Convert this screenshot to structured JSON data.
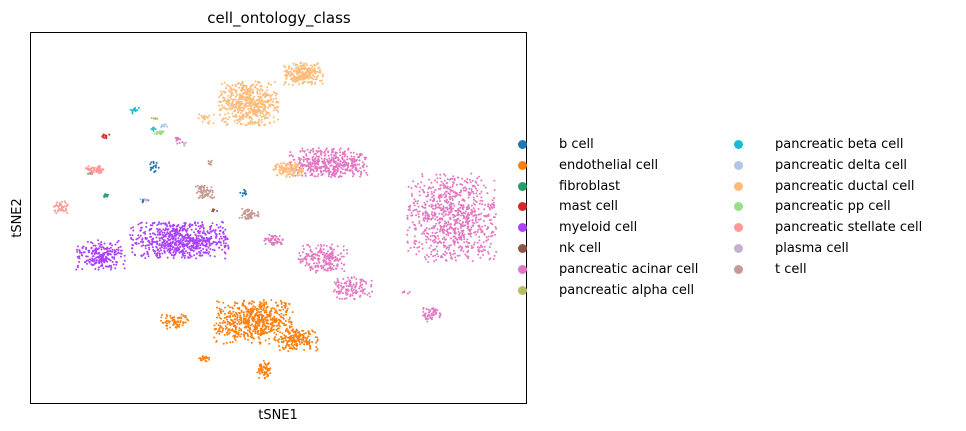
{
  "chart_data": {
    "type": "scatter",
    "title": "cell_ontology_class",
    "xlabel": "tSNE1",
    "ylabel": "tSNE2",
    "xlim": [
      0,
      100
    ],
    "ylim": [
      0,
      100
    ],
    "grid": false,
    "legend_position": "right",
    "legend_columns": 2,
    "series": [
      {
        "name": "b cell",
        "color": "#1f77b4",
        "clusters": [
          [
            25,
            64,
            1.2,
            1.6,
            18
          ],
          [
            43,
            57,
            0.8,
            1.2,
            10
          ],
          [
            23,
            55,
            1.0,
            0.8,
            8
          ]
        ]
      },
      {
        "name": "endothelial cell",
        "color": "#ff7f0e",
        "clusters": [
          [
            45,
            22,
            8,
            6,
            600
          ],
          [
            54,
            17,
            4,
            3,
            180
          ],
          [
            29,
            22,
            3,
            2,
            70
          ],
          [
            47,
            9,
            1.5,
            2.5,
            60
          ],
          [
            35,
            12,
            1.2,
            0.8,
            20
          ]
        ]
      },
      {
        "name": "fibroblast",
        "color": "#279e68",
        "clusters": [
          [
            15,
            56,
            0.8,
            0.6,
            10
          ],
          [
            12,
            62,
            0.5,
            0.4,
            4
          ]
        ]
      },
      {
        "name": "mast cell",
        "color": "#d62728",
        "clusters": [
          [
            15,
            72,
            0.9,
            0.6,
            12
          ]
        ]
      },
      {
        "name": "myeloid cell",
        "color": "#aa40fc",
        "clusters": [
          [
            30,
            44,
            10,
            5,
            700
          ],
          [
            14,
            40,
            5,
            4,
            230
          ]
        ]
      },
      {
        "name": "nk cell",
        "color": "#8c564b",
        "clusters": [
          [
            37,
            52,
            0.6,
            0.5,
            5
          ]
        ]
      },
      {
        "name": "pancreatic acinar cell",
        "color": "#e377c2",
        "clusters": [
          [
            85,
            50,
            9,
            12,
            850
          ],
          [
            60,
            65,
            8,
            4,
            450
          ],
          [
            59,
            39,
            5,
            4,
            200
          ],
          [
            65,
            31,
            4,
            3,
            120
          ],
          [
            81,
            24,
            2,
            2,
            50
          ],
          [
            49,
            44,
            2,
            1.5,
            50
          ],
          [
            30,
            71,
            1.5,
            1.0,
            12
          ],
          [
            76,
            30,
            1.0,
            0.6,
            6
          ]
        ]
      },
      {
        "name": "pancreatic alpha cell",
        "color": "#b5bd61",
        "clusters": [
          [
            25,
            77,
            0.7,
            0.5,
            6
          ]
        ]
      },
      {
        "name": "pancreatic beta cell",
        "color": "#17becf",
        "clusters": [
          [
            21,
            79,
            1.0,
            0.8,
            14
          ],
          [
            25,
            74,
            0.9,
            0.6,
            8
          ]
        ]
      },
      {
        "name": "pancreatic delta cell",
        "color": "#aec7e8",
        "clusters": [
          [
            27,
            75,
            0.8,
            0.6,
            8
          ]
        ]
      },
      {
        "name": "pancreatic ductal cell",
        "color": "#ffbb78",
        "clusters": [
          [
            44,
            81,
            6,
            6,
            550
          ],
          [
            55,
            89,
            4,
            3,
            250
          ],
          [
            52,
            63,
            3,
            2,
            130
          ],
          [
            35,
            77,
            2,
            1.5,
            20
          ]
        ]
      },
      {
        "name": "pancreatic pp cell",
        "color": "#98df8a",
        "clusters": [
          [
            26,
            73,
            1.2,
            0.8,
            18
          ]
        ]
      },
      {
        "name": "pancreatic stellate cell",
        "color": "#ff9896",
        "clusters": [
          [
            13,
            63,
            2,
            1.2,
            60
          ],
          [
            6,
            53,
            1.5,
            1.8,
            45
          ]
        ]
      },
      {
        "name": "plasma cell",
        "color": "#c5b0d5",
        "clusters": [
          [
            23,
            55,
            1.0,
            0.5,
            6
          ],
          [
            31,
            70,
            0.8,
            0.5,
            5
          ]
        ]
      },
      {
        "name": "t cell",
        "color": "#c49c94",
        "clusters": [
          [
            35,
            57,
            2,
            1.8,
            70
          ],
          [
            44,
            51,
            2,
            1.5,
            60
          ],
          [
            36,
            65,
            0.6,
            0.8,
            8
          ]
        ]
      }
    ]
  }
}
